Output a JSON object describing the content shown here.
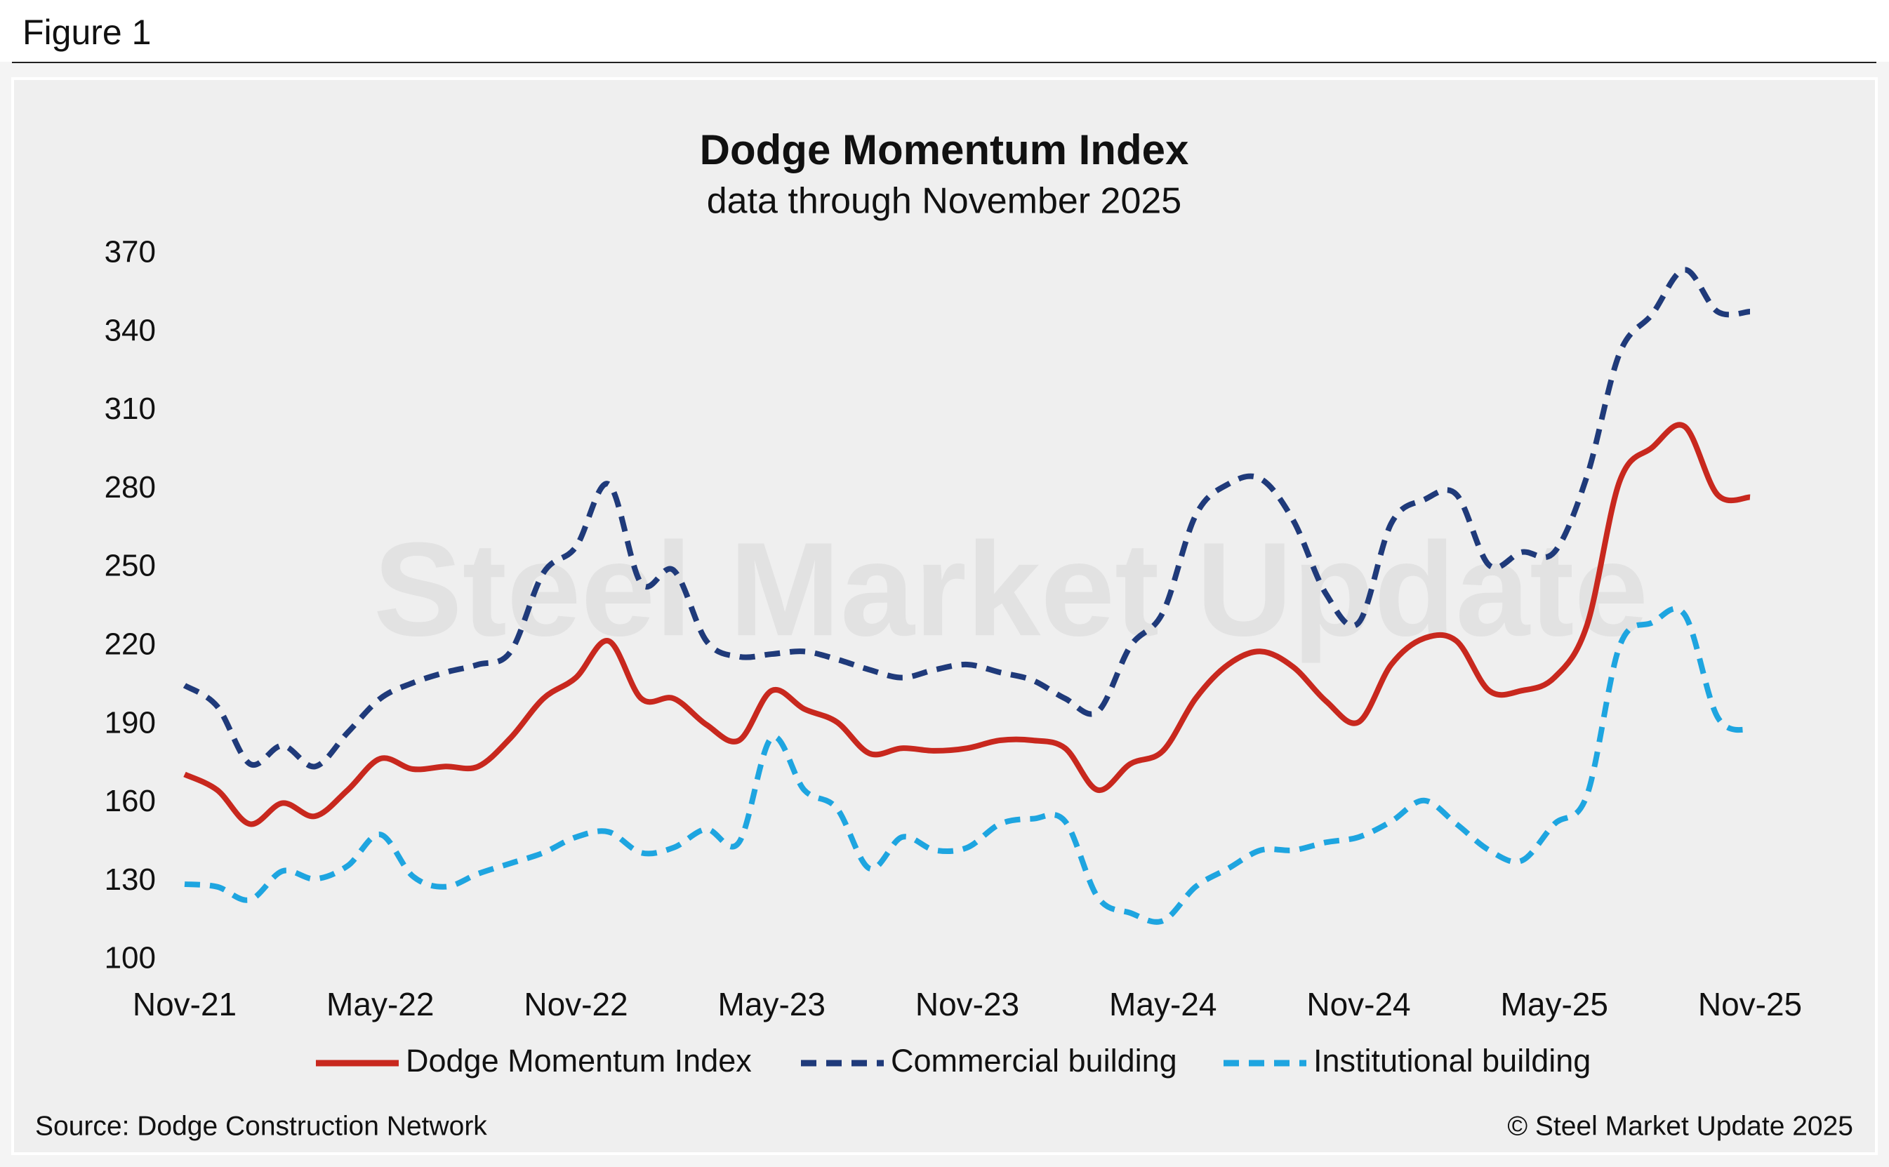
{
  "header": "Figure 1",
  "chart_data": {
    "type": "line",
    "title": "Dodge Momentum Index",
    "subtitle": "data through November 2025",
    "watermark": "Steel Market Update",
    "source": "Source: Dodge Construction Network",
    "copyright": "© Steel Market Update 2025",
    "categories": [
      "Nov-21",
      null,
      null,
      null,
      null,
      null,
      "May-22",
      null,
      null,
      null,
      null,
      null,
      "Nov-22",
      null,
      null,
      null,
      null,
      null,
      "May-23",
      null,
      null,
      null,
      null,
      null,
      "Nov-23",
      null,
      null,
      null,
      null,
      null,
      "May-24",
      null,
      null,
      null,
      null,
      null,
      "Nov-24",
      null,
      null,
      null,
      null,
      null,
      "May-25",
      null,
      null,
      null,
      null,
      null,
      "Nov-25"
    ],
    "ylim": [
      100,
      370
    ],
    "yticks": [
      100,
      130,
      160,
      190,
      220,
      250,
      280,
      310,
      340,
      370
    ],
    "grid": false,
    "legend": "bottom",
    "series": [
      {
        "name": "Dodge Momentum Index",
        "color": "#c8281e",
        "style": "solid",
        "values": [
          171,
          165,
          152,
          160,
          155,
          165,
          177,
          173,
          174,
          174,
          185,
          200,
          208,
          222,
          200,
          200,
          190,
          184,
          203,
          196,
          191,
          179,
          181,
          180,
          181,
          184,
          184,
          181,
          165,
          175,
          180,
          200,
          213,
          218,
          212,
          199,
          191,
          213,
          223,
          222,
          203,
          203,
          208,
          228,
          283,
          296,
          304,
          278,
          277
        ]
      },
      {
        "name": "Commercial building",
        "color": "#1f3a7a",
        "style": "dashed",
        "values": [
          205,
          197,
          175,
          182,
          174,
          187,
          200,
          206,
          210,
          213,
          218,
          248,
          258,
          282,
          244,
          249,
          222,
          216,
          217,
          218,
          215,
          211,
          208,
          211,
          213,
          210,
          207,
          200,
          195,
          220,
          233,
          270,
          282,
          284,
          268,
          240,
          229,
          267,
          276,
          278,
          251,
          256,
          256,
          285,
          332,
          347,
          364,
          348,
          348
        ]
      },
      {
        "name": "Institutional building",
        "color": "#1ea5e0",
        "style": "dashed",
        "values": [
          129,
          128,
          123,
          134,
          131,
          136,
          148,
          132,
          128,
          133,
          137,
          141,
          147,
          149,
          141,
          143,
          150,
          145,
          185,
          165,
          158,
          135,
          147,
          142,
          143,
          152,
          154,
          153,
          124,
          118,
          115,
          128,
          135,
          142,
          142,
          145,
          147,
          153,
          161,
          152,
          142,
          138,
          152,
          163,
          220,
          229,
          232,
          193,
          188
        ]
      }
    ]
  }
}
